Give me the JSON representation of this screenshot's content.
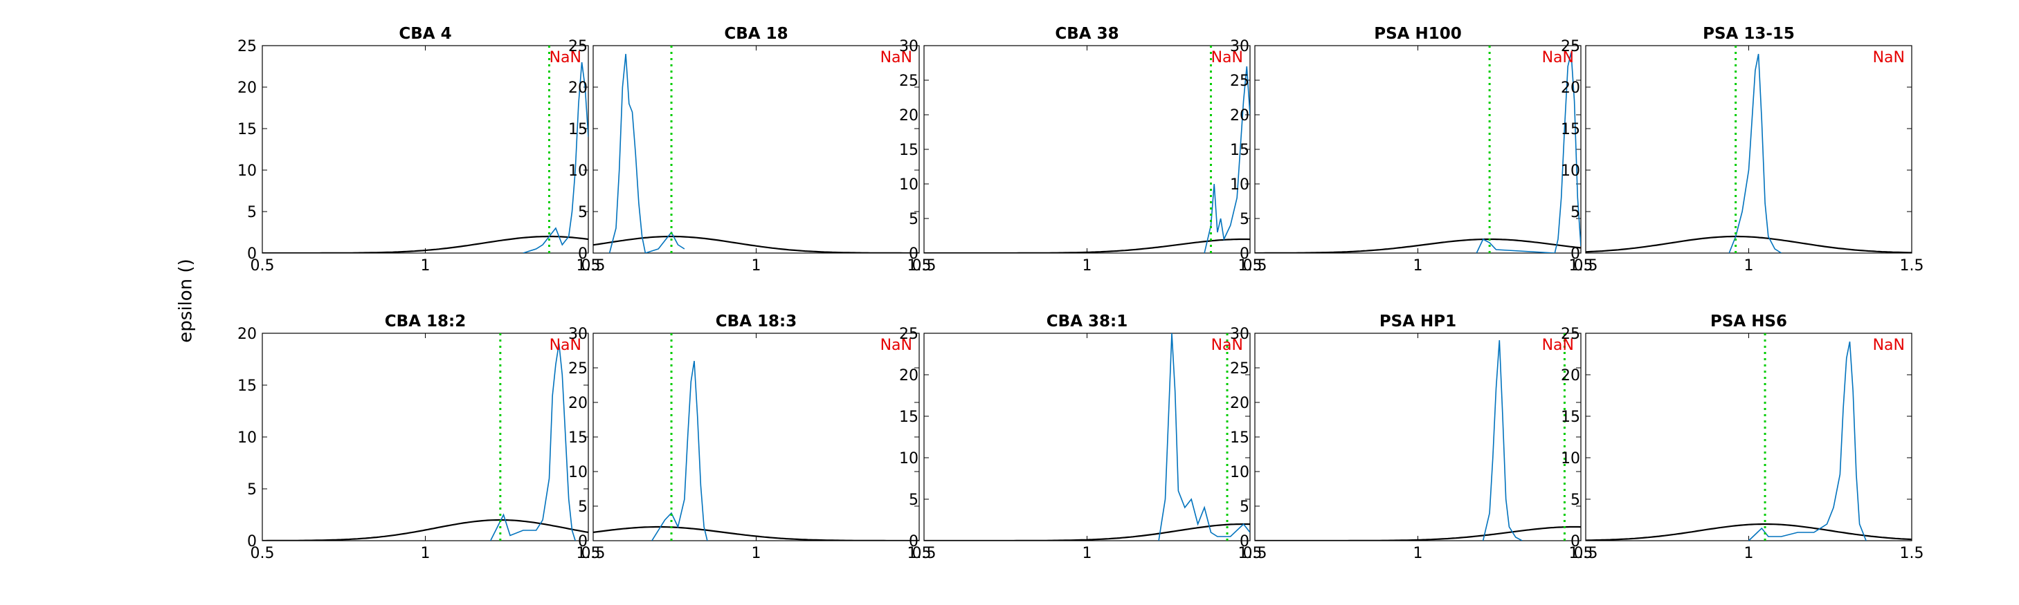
{
  "figure": {
    "ylabel": "epsilon ()",
    "colors": {
      "histogram": "#0072bd",
      "gaussian": "#000000",
      "marker": "#00cc00",
      "annotation": "#e50000"
    }
  },
  "chart_data": [
    {
      "type": "line",
      "title": "CBA 4",
      "xlim": [
        0.5,
        1.5
      ],
      "ylim": [
        0,
        25
      ],
      "yticks": [
        0,
        5,
        10,
        15,
        20,
        25
      ],
      "xticks": [
        0.5,
        1,
        1.5
      ],
      "xticklabels": [
        "0.5",
        "1",
        "1.5"
      ],
      "grid": false,
      "annotation": "NaN",
      "marker_x": 1.38,
      "gaussian": {
        "mu": 1.38,
        "sigma": 0.2,
        "peak": 2
      },
      "series": [
        {
          "x": [
            1.3,
            1.34,
            1.36,
            1.38,
            1.4,
            1.42,
            1.44,
            1.45,
            1.46,
            1.47,
            1.48,
            1.49,
            1.5
          ],
          "y": [
            0,
            0.5,
            1,
            2,
            3,
            1,
            2,
            5,
            10,
            18,
            23,
            20,
            14
          ]
        }
      ]
    },
    {
      "type": "line",
      "title": "CBA 18",
      "xlim": [
        0.5,
        1.5
      ],
      "ylim": [
        0,
        25
      ],
      "yticks": [
        0,
        5,
        10,
        15,
        20,
        25
      ],
      "xticks": [
        0.5,
        1,
        1.5
      ],
      "xticklabels": [
        "0.5",
        "1",
        "1.5"
      ],
      "grid": false,
      "annotation": "NaN",
      "marker_x": 0.74,
      "gaussian": {
        "mu": 0.74,
        "sigma": 0.2,
        "peak": 2
      },
      "series": [
        {
          "x": [
            0.55,
            0.57,
            0.58,
            0.59,
            0.6,
            0.61,
            0.62,
            0.63,
            0.64,
            0.65,
            0.66,
            0.7,
            0.74,
            0.76,
            0.78
          ],
          "y": [
            0,
            3,
            10,
            20,
            24,
            18,
            17,
            12,
            6,
            2,
            0,
            0.5,
            2.5,
            1,
            0.5
          ]
        }
      ]
    },
    {
      "type": "line",
      "title": "CBA 38",
      "xlim": [
        0.5,
        1.5
      ],
      "ylim": [
        0,
        30
      ],
      "yticks": [
        0,
        5,
        10,
        15,
        20,
        25,
        30
      ],
      "xticks": [
        0.5,
        1,
        1.5
      ],
      "xticklabels": [
        "0.5",
        "1",
        "1.5"
      ],
      "grid": false,
      "annotation": "NaN",
      "marker_x": 1.38,
      "gaussian": {
        "mu": 1.48,
        "sigma": 0.2,
        "peak": 2
      },
      "series": [
        {
          "x": [
            1.36,
            1.38,
            1.39,
            1.4,
            1.41,
            1.42,
            1.44,
            1.46,
            1.47,
            1.48,
            1.49,
            1.5
          ],
          "y": [
            0,
            4,
            10,
            3,
            5,
            2,
            4,
            8,
            15,
            22,
            27,
            20
          ]
        }
      ]
    },
    {
      "type": "line",
      "title": "PSA H100",
      "xlim": [
        0.5,
        1.5
      ],
      "ylim": [
        0,
        30
      ],
      "yticks": [
        0,
        5,
        10,
        15,
        20,
        25,
        30
      ],
      "xticks": [
        0.5,
        1,
        1.5
      ],
      "xticklabels": [
        "0.5",
        "1",
        "1.5"
      ],
      "grid": false,
      "annotation": "NaN",
      "marker_x": 1.22,
      "gaussian": {
        "mu": 1.22,
        "sigma": 0.2,
        "peak": 2
      },
      "series": [
        {
          "x": [
            1.18,
            1.2,
            1.22,
            1.24,
            1.42,
            1.43,
            1.44,
            1.45,
            1.46,
            1.47,
            1.48,
            1.49,
            1.5
          ],
          "y": [
            0,
            2,
            1.5,
            0.5,
            0,
            2,
            8,
            18,
            27,
            29,
            22,
            8,
            1
          ]
        }
      ]
    },
    {
      "type": "line",
      "title": "PSA 13-15",
      "xlim": [
        0.5,
        1.5
      ],
      "ylim": [
        0,
        25
      ],
      "yticks": [
        0,
        5,
        10,
        15,
        20,
        25
      ],
      "xticks": [
        0.5,
        1,
        1.5
      ],
      "xticklabels": [
        "0.5",
        "1",
        "1.5"
      ],
      "grid": false,
      "annotation": "NaN",
      "marker_x": 0.96,
      "gaussian": {
        "mu": 0.96,
        "sigma": 0.2,
        "peak": 2
      },
      "series": [
        {
          "x": [
            0.94,
            0.96,
            0.98,
            1,
            1.01,
            1.02,
            1.03,
            1.04,
            1.05,
            1.06,
            1.08,
            1.1
          ],
          "y": [
            0,
            2,
            5,
            10,
            16,
            22,
            24,
            16,
            6,
            2,
            0.5,
            0
          ]
        }
      ]
    },
    {
      "type": "line",
      "title": "CBA 18:2",
      "xlim": [
        0.5,
        1.5
      ],
      "ylim": [
        0,
        20
      ],
      "yticks": [
        0,
        5,
        10,
        15,
        20
      ],
      "xticks": [
        0.5,
        1,
        1.5
      ],
      "xticklabels": [
        "0.5",
        "1",
        "1.5"
      ],
      "grid": false,
      "annotation": "NaN",
      "marker_x": 1.23,
      "gaussian": {
        "mu": 1.23,
        "sigma": 0.2,
        "peak": 2
      },
      "series": [
        {
          "x": [
            1.2,
            1.24,
            1.26,
            1.3,
            1.34,
            1.36,
            1.38,
            1.39,
            1.4,
            1.41,
            1.42,
            1.43,
            1.44,
            1.45,
            1.46
          ],
          "y": [
            0,
            2.5,
            0.5,
            1,
            1,
            2,
            6,
            14,
            17,
            19,
            16,
            10,
            4,
            1,
            0
          ]
        }
      ]
    },
    {
      "type": "line",
      "title": "CBA 18:3",
      "xlim": [
        0.5,
        1.5
      ],
      "ylim": [
        0,
        30
      ],
      "yticks": [
        0,
        5,
        10,
        15,
        20,
        25,
        30
      ],
      "xticks": [
        0.5,
        1,
        1.5
      ],
      "xticklabels": [
        "0.5",
        "1",
        "1.5"
      ],
      "grid": false,
      "annotation": "NaN",
      "marker_x": 0.74,
      "gaussian": {
        "mu": 0.7,
        "sigma": 0.2,
        "peak": 2
      },
      "series": [
        {
          "x": [
            0.68,
            0.7,
            0.72,
            0.74,
            0.76,
            0.78,
            0.79,
            0.8,
            0.81,
            0.82,
            0.83,
            0.84,
            0.85
          ],
          "y": [
            0,
            1.5,
            3,
            4,
            2,
            6,
            15,
            23,
            26,
            18,
            8,
            2,
            0
          ]
        }
      ]
    },
    {
      "type": "line",
      "title": "CBA 38:1",
      "xlim": [
        0.5,
        1.5
      ],
      "ylim": [
        0,
        25
      ],
      "yticks": [
        0,
        5,
        10,
        15,
        20,
        25
      ],
      "xticks": [
        0.5,
        1,
        1.5
      ],
      "xticklabels": [
        "0.5",
        "1",
        "1.5"
      ],
      "grid": false,
      "annotation": "NaN",
      "marker_x": 1.43,
      "gaussian": {
        "mu": 1.48,
        "sigma": 0.2,
        "peak": 2
      },
      "series": [
        {
          "x": [
            1.22,
            1.24,
            1.25,
            1.26,
            1.27,
            1.28,
            1.3,
            1.32,
            1.34,
            1.36,
            1.38,
            1.4,
            1.44,
            1.48,
            1.5
          ],
          "y": [
            0,
            5,
            15,
            25,
            18,
            6,
            4,
            5,
            2,
            4,
            1,
            0.5,
            0.5,
            2,
            1
          ]
        }
      ]
    },
    {
      "type": "line",
      "title": "PSA HP1",
      "xlim": [
        0.5,
        1.5
      ],
      "ylim": [
        0,
        30
      ],
      "yticks": [
        0,
        5,
        10,
        15,
        20,
        25,
        30
      ],
      "xticks": [
        0.5,
        1,
        1.5
      ],
      "xticklabels": [
        "0.5",
        "1",
        "1.5"
      ],
      "grid": false,
      "annotation": "NaN",
      "marker_x": 1.45,
      "gaussian": {
        "mu": 1.48,
        "sigma": 0.2,
        "peak": 2
      },
      "series": [
        {
          "x": [
            1.2,
            1.22,
            1.23,
            1.24,
            1.25,
            1.26,
            1.27,
            1.28,
            1.3,
            1.32
          ],
          "y": [
            0,
            4,
            12,
            22,
            29,
            18,
            6,
            2,
            0.5,
            0
          ]
        }
      ]
    },
    {
      "type": "line",
      "title": "PSA HS6",
      "xlim": [
        0.5,
        1.5
      ],
      "ylim": [
        0,
        25
      ],
      "yticks": [
        0,
        5,
        10,
        15,
        20,
        25
      ],
      "xticks": [
        0.5,
        1,
        1.5
      ],
      "xticklabels": [
        "0.5",
        "1",
        "1.5"
      ],
      "grid": false,
      "annotation": "NaN",
      "marker_x": 1.05,
      "gaussian": {
        "mu": 1.05,
        "sigma": 0.2,
        "peak": 2
      },
      "series": [
        {
          "x": [
            1,
            1.04,
            1.06,
            1.1,
            1.15,
            1.2,
            1.24,
            1.26,
            1.28,
            1.29,
            1.3,
            1.31,
            1.32,
            1.33,
            1.34,
            1.36
          ],
          "y": [
            0,
            1.5,
            0.5,
            0.5,
            1,
            1,
            2,
            4,
            8,
            16,
            22,
            24,
            18,
            8,
            2,
            0
          ]
        }
      ]
    }
  ]
}
